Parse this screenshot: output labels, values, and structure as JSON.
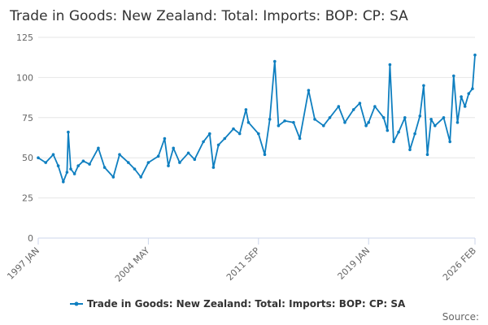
{
  "chart_data": {
    "type": "line",
    "title": "Trade in Goods: New Zealand: Total: Imports: BOP: CP: SA",
    "xlabel": "",
    "ylabel": "",
    "x_range": [
      "1997 JAN",
      "2026 FEB"
    ],
    "ylim": [
      0,
      125
    ],
    "y_ticks": [
      "0",
      "25",
      "50",
      "75",
      "100",
      "125"
    ],
    "x_ticks": [
      "1997 JAN",
      "2004 MAY",
      "2011 SEP",
      "2019 JAN",
      "2026 FEB"
    ],
    "grid": true,
    "legend_position": "bottom",
    "source_label": "Source:",
    "color": "#0f7fc0",
    "series": [
      {
        "name": "Trade in Goods: New Zealand: Total: Imports: BOP: CP: SA",
        "points": [
          [
            "1997 JAN",
            50
          ],
          [
            "1997 JUL",
            47
          ],
          [
            "1998 JAN",
            52
          ],
          [
            "1998 MAY",
            45
          ],
          [
            "1998 SEP",
            35
          ],
          [
            "1998 DEC",
            41
          ],
          [
            "1999 JAN",
            66
          ],
          [
            "1999 MAR",
            43
          ],
          [
            "1999 JUN",
            40
          ],
          [
            "1999 SEP",
            45
          ],
          [
            "2000 JAN",
            48
          ],
          [
            "2000 JUN",
            46
          ],
          [
            "2001 JAN",
            56
          ],
          [
            "2001 JUN",
            44
          ],
          [
            "2002 JAN",
            38
          ],
          [
            "2002 JUN",
            52
          ],
          [
            "2003 JAN",
            47
          ],
          [
            "2003 JUN",
            43
          ],
          [
            "2003 NOV",
            38
          ],
          [
            "2004 MAY",
            47
          ],
          [
            "2005 JAN",
            51
          ],
          [
            "2005 JUN",
            62
          ],
          [
            "2005 SEP",
            45
          ],
          [
            "2006 JAN",
            56
          ],
          [
            "2006 JUN",
            47
          ],
          [
            "2007 JAN",
            53
          ],
          [
            "2007 JUN",
            49
          ],
          [
            "2008 JAN",
            60
          ],
          [
            "2008 JUN",
            65
          ],
          [
            "2008 SEP",
            44
          ],
          [
            "2009 JAN",
            58
          ],
          [
            "2009 JUN",
            62
          ],
          [
            "2010 JAN",
            68
          ],
          [
            "2010 JUN",
            65
          ],
          [
            "2010 NOV",
            80
          ],
          [
            "2011 JAN",
            72
          ],
          [
            "2011 SEP",
            65
          ],
          [
            "2012 FEB",
            52
          ],
          [
            "2012 JUN",
            74
          ],
          [
            "2012 OCT",
            110
          ],
          [
            "2013 JAN",
            70
          ],
          [
            "2013 JUN",
            73
          ],
          [
            "2014 JAN",
            72
          ],
          [
            "2014 JUN",
            62
          ],
          [
            "2015 JAN",
            92
          ],
          [
            "2015 JUN",
            74
          ],
          [
            "2016 JAN",
            70
          ],
          [
            "2016 JUN",
            75
          ],
          [
            "2017 JAN",
            82
          ],
          [
            "2017 JUN",
            72
          ],
          [
            "2018 JAN",
            80
          ],
          [
            "2018 JUN",
            84
          ],
          [
            "2018 NOV",
            70
          ],
          [
            "2019 JAN",
            72
          ],
          [
            "2019 JUN",
            82
          ],
          [
            "2020 JAN",
            75
          ],
          [
            "2020 APR",
            67
          ],
          [
            "2020 JUN",
            108
          ],
          [
            "2020 SEP",
            60
          ],
          [
            "2021 JAN",
            66
          ],
          [
            "2021 JUN",
            75
          ],
          [
            "2021 OCT",
            55
          ],
          [
            "2022 FEB",
            65
          ],
          [
            "2022 JUN",
            76
          ],
          [
            "2022 SEP",
            95
          ],
          [
            "2022 DEC",
            52
          ],
          [
            "2023 MAR",
            74
          ],
          [
            "2023 JUN",
            70
          ],
          [
            "2024 JAN",
            75
          ],
          [
            "2024 JUN",
            60
          ],
          [
            "2024 SEP",
            101
          ],
          [
            "2024 DEC",
            72
          ],
          [
            "2025 MAR",
            88
          ],
          [
            "2025 JUN",
            82
          ],
          [
            "2025 SEP",
            90
          ],
          [
            "2025 DEC",
            93
          ],
          [
            "2026 FEB",
            114
          ]
        ]
      }
    ]
  }
}
